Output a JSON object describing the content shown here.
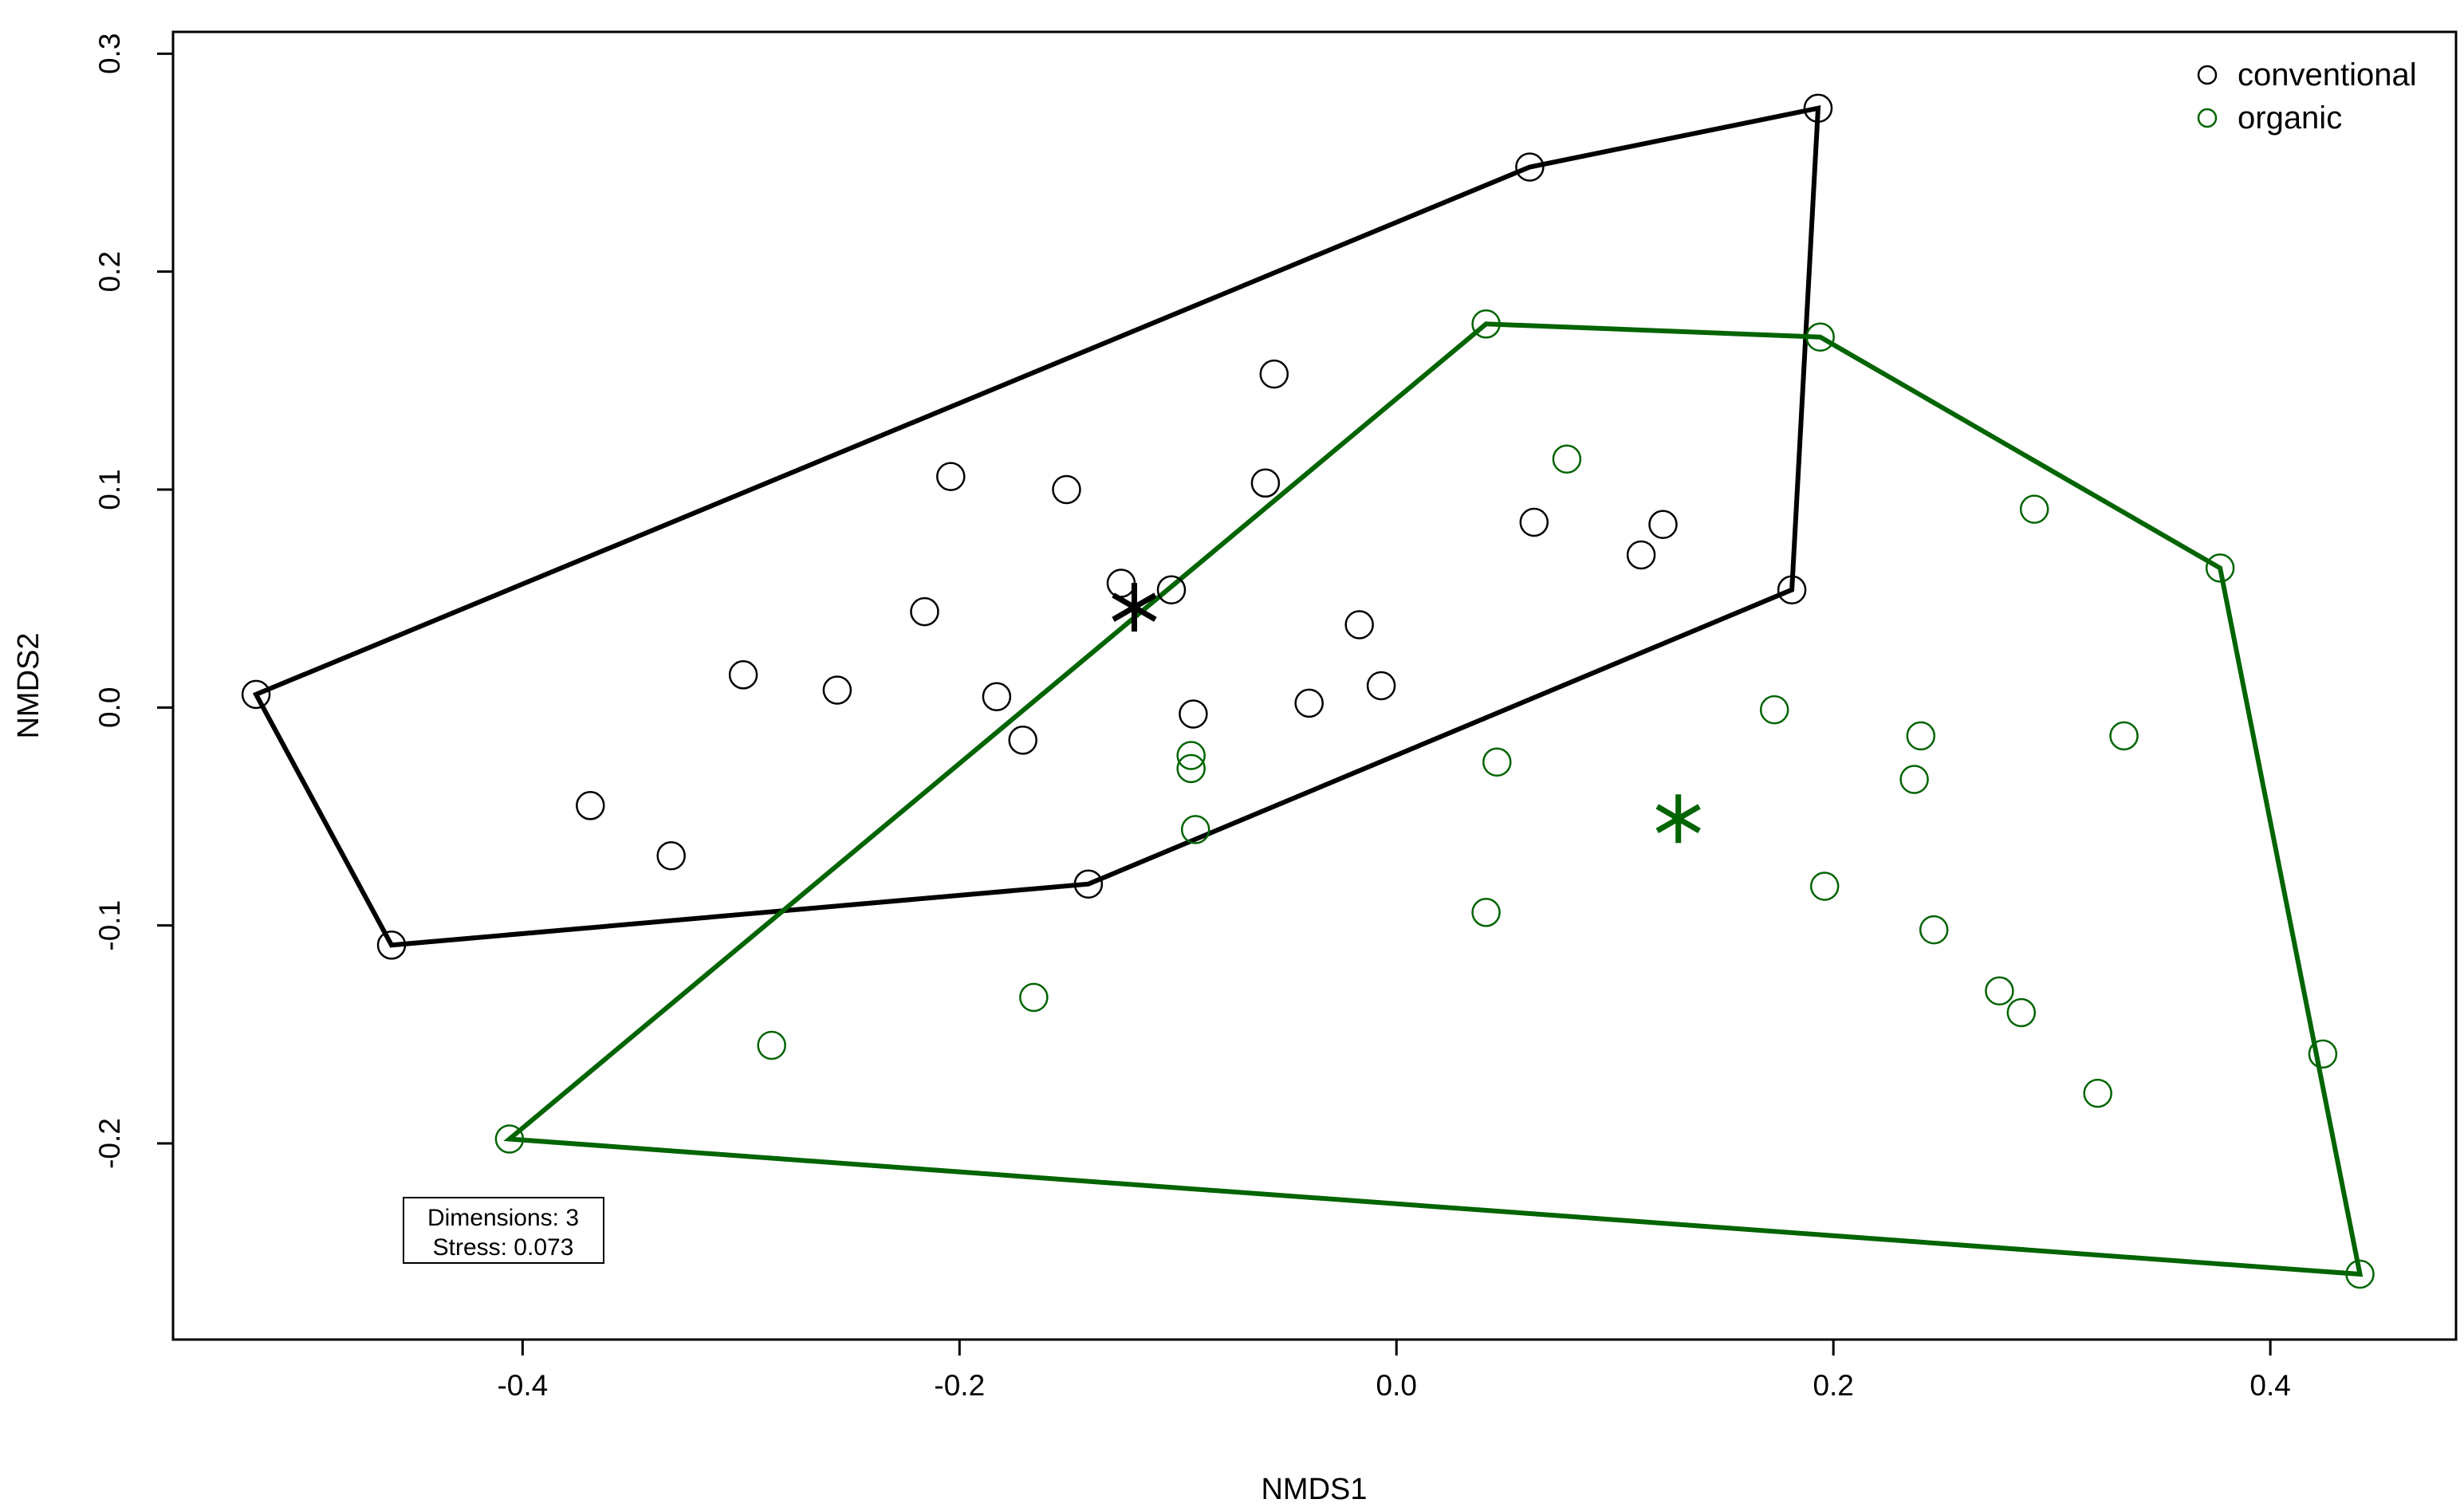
{
  "chart_data": {
    "type": "scatter",
    "title": "",
    "xlabel": "NMDS1",
    "ylabel": "NMDS2",
    "xlim": [
      -0.56,
      0.485
    ],
    "ylim": [
      -0.29,
      0.31
    ],
    "x_ticks": [
      -0.4,
      -0.2,
      0.0,
      0.2,
      0.4
    ],
    "x_tick_labels": [
      "-0.4",
      "-0.2",
      "0.0",
      "0.2",
      "0.4"
    ],
    "y_ticks": [
      -0.2,
      -0.1,
      0.0,
      0.1,
      0.2,
      0.3
    ],
    "y_tick_labels": [
      "-0.2",
      "-0.1",
      "0.0",
      "0.1",
      "0.2",
      "0.3"
    ],
    "grid": false,
    "legend_position": "top-right",
    "series": [
      {
        "name": "conventional",
        "color": "#000000",
        "centroid": [
          -0.12,
          0.046
        ],
        "hull": [
          [
            -0.522,
            0.006
          ],
          [
            -0.46,
            -0.109
          ],
          [
            -0.141,
            -0.081
          ],
          [
            0.181,
            0.054
          ],
          [
            0.193,
            0.275
          ],
          [
            0.061,
            0.248
          ]
        ],
        "points": [
          [
            -0.522,
            0.006
          ],
          [
            -0.46,
            -0.109
          ],
          [
            -0.369,
            -0.045
          ],
          [
            -0.332,
            -0.068
          ],
          [
            -0.299,
            0.015
          ],
          [
            -0.256,
            0.008
          ],
          [
            -0.216,
            0.044
          ],
          [
            -0.204,
            0.106
          ],
          [
            -0.183,
            0.005
          ],
          [
            -0.171,
            -0.015
          ],
          [
            -0.151,
            0.1
          ],
          [
            -0.141,
            -0.081
          ],
          [
            -0.126,
            0.057
          ],
          [
            -0.103,
            0.054
          ],
          [
            -0.093,
            -0.003
          ],
          [
            -0.06,
            0.103
          ],
          [
            -0.056,
            0.153
          ],
          [
            -0.04,
            0.002
          ],
          [
            -0.017,
            0.038
          ],
          [
            -0.007,
            0.01
          ],
          [
            0.061,
            0.248
          ],
          [
            0.063,
            0.085
          ],
          [
            0.112,
            0.07
          ],
          [
            0.122,
            0.084
          ],
          [
            0.181,
            0.054
          ],
          [
            0.193,
            0.275
          ]
        ]
      },
      {
        "name": "organic",
        "color": "#006400",
        "centroid": [
          0.129,
          -0.051
        ],
        "hull": [
          [
            -0.406,
            -0.198
          ],
          [
            0.041,
            0.176
          ],
          [
            0.194,
            0.17
          ],
          [
            0.377,
            0.064
          ],
          [
            0.441,
            -0.26
          ]
        ],
        "points": [
          [
            -0.406,
            -0.198
          ],
          [
            -0.286,
            -0.155
          ],
          [
            -0.166,
            -0.133
          ],
          [
            -0.094,
            -0.022
          ],
          [
            -0.094,
            -0.028
          ],
          [
            -0.092,
            -0.056
          ],
          [
            0.041,
            0.176
          ],
          [
            0.041,
            -0.094
          ],
          [
            0.046,
            -0.025
          ],
          [
            0.078,
            0.114
          ],
          [
            0.173,
            -0.001
          ],
          [
            0.194,
            0.17
          ],
          [
            0.196,
            -0.082
          ],
          [
            0.237,
            -0.033
          ],
          [
            0.24,
            -0.013
          ],
          [
            0.246,
            -0.102
          ],
          [
            0.276,
            -0.13
          ],
          [
            0.286,
            -0.14
          ],
          [
            0.292,
            0.091
          ],
          [
            0.321,
            -0.177
          ],
          [
            0.333,
            -0.013
          ],
          [
            0.377,
            0.064
          ],
          [
            0.424,
            -0.159
          ],
          [
            0.441,
            -0.26
          ]
        ]
      }
    ],
    "annotation": {
      "line1": "Dimensions: 3",
      "line2": "Stress: 0.073"
    }
  }
}
